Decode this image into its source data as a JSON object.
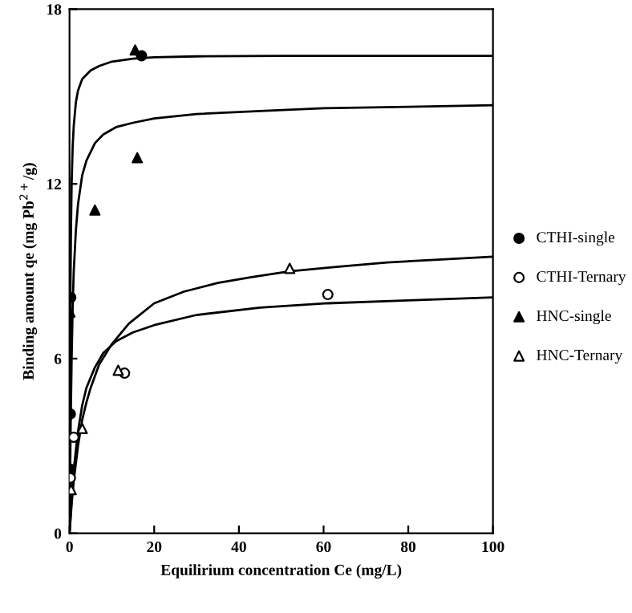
{
  "chart_data": {
    "type": "scatter",
    "xlabel": "Equilirium concentration Ce (mg/L)",
    "ylabel": "Binding amount qe (mg Pb$^{2+}$/g)",
    "xlim": [
      0,
      100
    ],
    "ylim": [
      0,
      18
    ],
    "xticks": [
      0,
      20,
      40,
      60,
      80,
      100
    ],
    "yticks": [
      0,
      6,
      12,
      18
    ],
    "grid": false,
    "legend": "right",
    "series": [
      {
        "type": "line",
        "color": "#000000",
        "marker": "none",
        "x": [
          0,
          0.1,
          0.2,
          0.35,
          0.5,
          0.75,
          1,
          1.5,
          2,
          3,
          5,
          7,
          10,
          15,
          20,
          30,
          50,
          100
        ],
        "values": [
          0,
          4.5,
          8,
          10.5,
          12,
          13.3,
          14,
          14.8,
          15.2,
          15.6,
          15.9,
          16.05,
          16.2,
          16.3,
          16.35,
          16.38,
          16.4,
          16.4
        ]
      },
      {
        "type": "line",
        "color": "#000000",
        "marker": "none",
        "x": [
          0,
          0.25,
          0.5,
          0.75,
          1,
          1.5,
          2,
          3,
          4,
          6,
          8,
          11,
          15,
          20,
          30,
          45,
          60,
          80,
          100
        ],
        "values": [
          0,
          3.5,
          6,
          7.8,
          9,
          10.4,
          11.3,
          12.3,
          12.8,
          13.4,
          13.7,
          13.95,
          14.1,
          14.25,
          14.4,
          14.5,
          14.6,
          14.65,
          14.7
        ]
      },
      {
        "type": "line",
        "color": "#000000",
        "marker": "none",
        "x": [
          0,
          0.5,
          1,
          2,
          3,
          4,
          5,
          7,
          10,
          14,
          20,
          27,
          35,
          43,
          52,
          63,
          75,
          87,
          100
        ],
        "values": [
          0,
          1,
          1.8,
          3,
          3.9,
          4.5,
          5,
          5.8,
          6.5,
          7.2,
          7.9,
          8.3,
          8.6,
          8.8,
          9.0,
          9.15,
          9.3,
          9.4,
          9.5
        ]
      },
      {
        "type": "line",
        "color": "#000000",
        "marker": "none",
        "x": [
          0,
          0.5,
          1,
          2,
          3,
          4,
          6,
          8,
          11,
          15,
          20,
          30,
          45,
          61,
          80,
          100
        ],
        "values": [
          0,
          1.2,
          2.2,
          3.5,
          4.4,
          5,
          5.7,
          6.2,
          6.6,
          6.9,
          7.15,
          7.5,
          7.75,
          7.9,
          8.0,
          8.1
        ]
      },
      {
        "name": "CTHI-single",
        "color": "#000000",
        "marker": "circle",
        "x": [
          0.2,
          0.2,
          0.3,
          17
        ],
        "values": [
          2.2,
          4.1,
          8.1,
          16.4
        ]
      },
      {
        "name": "CTHI-Ternary",
        "color": "#ffffff",
        "marker": "circle",
        "x": [
          0.2,
          1,
          13,
          61
        ],
        "values": [
          1.9,
          3.3,
          5.5,
          8.2
        ]
      },
      {
        "name": "HNC-single",
        "color": "#000000",
        "marker": "triangle",
        "x": [
          0.1,
          6,
          16,
          15.5
        ],
        "values": [
          7.6,
          11.1,
          12.9,
          16.6
        ]
      },
      {
        "name": "HNC-Ternary",
        "color": "#ffffff",
        "marker": "triangle",
        "x": [
          0.4,
          3,
          11.5,
          52
        ],
        "values": [
          1.5,
          3.6,
          5.6,
          9.1
        ]
      }
    ]
  }
}
